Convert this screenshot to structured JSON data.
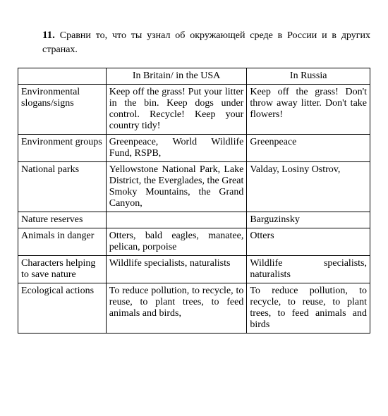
{
  "task": {
    "number": "11.",
    "text": "Сравни то, что ты узнал об окружающей среде в России и в других странах."
  },
  "table": {
    "headers": {
      "col1": "",
      "col2": "In Britain/ in the USA",
      "col3": "In Russia"
    },
    "rows": [
      {
        "label": "Environmental slogans/signs",
        "britain": "Keep off the grass! Put your litter in the bin. Keep dogs under control. Recycle! Keep your country tidy!",
        "russia": "Keep off the grass! Don't throw away litter. Don't take flowers!"
      },
      {
        "label": "Environment groups",
        "britain": "Greenpeace, World Wildlife Fund, RSPB,",
        "russia": "Greenpeace"
      },
      {
        "label": "National parks",
        "britain": "Yellowstone National Park, Lake District, the Everglades, the Great Smoky Mountains, the Grand Canyon,",
        "russia": "Valday, Losiny Ostrov,"
      },
      {
        "label": "Nature reserves",
        "britain": "",
        "russia": "Barguzinsky"
      },
      {
        "label": "Animals in danger",
        "britain": "Otters, bald eagles, manatee, pelican, porpoise",
        "russia": "Otters"
      },
      {
        "label": "Characters helping to save nature",
        "britain": "Wildlife specialists, naturalists",
        "russia": "Wildlife specialists, naturalists"
      },
      {
        "label": "Ecological actions",
        "britain": "To reduce pollution, to recycle, to reuse, to plant trees, to feed animals and birds,",
        "russia": "To reduce pollution, to recycle, to reuse, to plant trees, to feed animals and birds"
      }
    ]
  }
}
